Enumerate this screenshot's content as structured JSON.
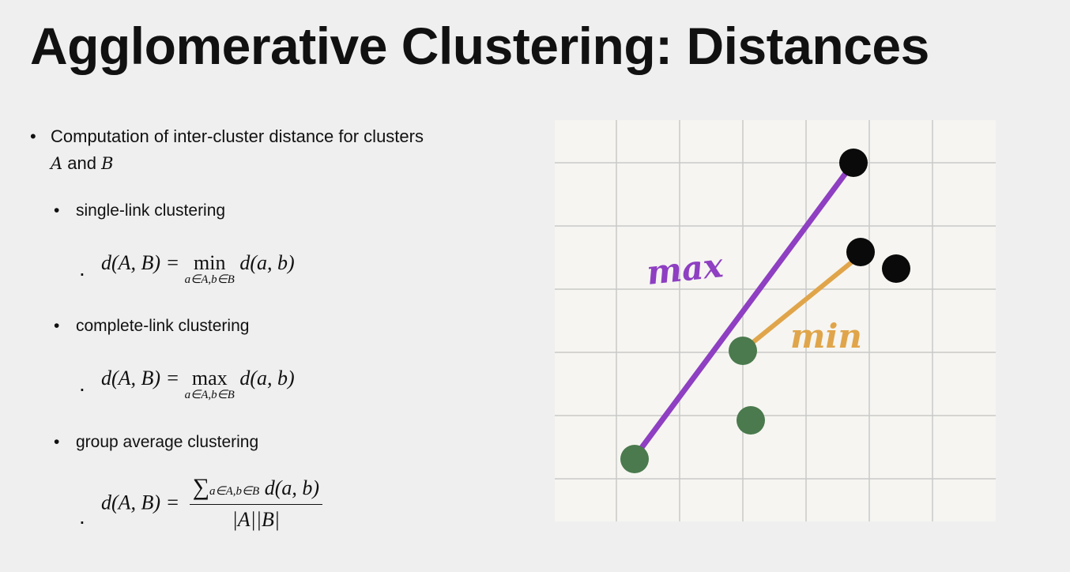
{
  "title": "Agglomerative Clustering: Distances",
  "bullets": {
    "main_text": "Computation of inter-cluster distance for clusters",
    "main_var_a": "A",
    "main_and": "and",
    "main_var_b": "B",
    "bullet_char": "•",
    "sub": [
      {
        "label": "single-link clustering",
        "op": "min"
      },
      {
        "label": "complete-link clustering",
        "op": "max"
      },
      {
        "label": "group average clustering"
      }
    ],
    "formula": {
      "lhs": "d(A, B) =",
      "under": "a∈A,b∈B",
      "rhs": "d(a, b)",
      "sigma": "∑",
      "denominator": "|A||B|"
    }
  },
  "diagram": {
    "colors": {
      "background": "#f6f5f1",
      "grid": "#c9c9c9",
      "cluster_a": "#4a7a4d",
      "cluster_b": "#0a0a0a",
      "max_line": "#8e3fc2",
      "min_line": "#e0a54a"
    },
    "labels": {
      "max": "max",
      "min": "min"
    }
  }
}
